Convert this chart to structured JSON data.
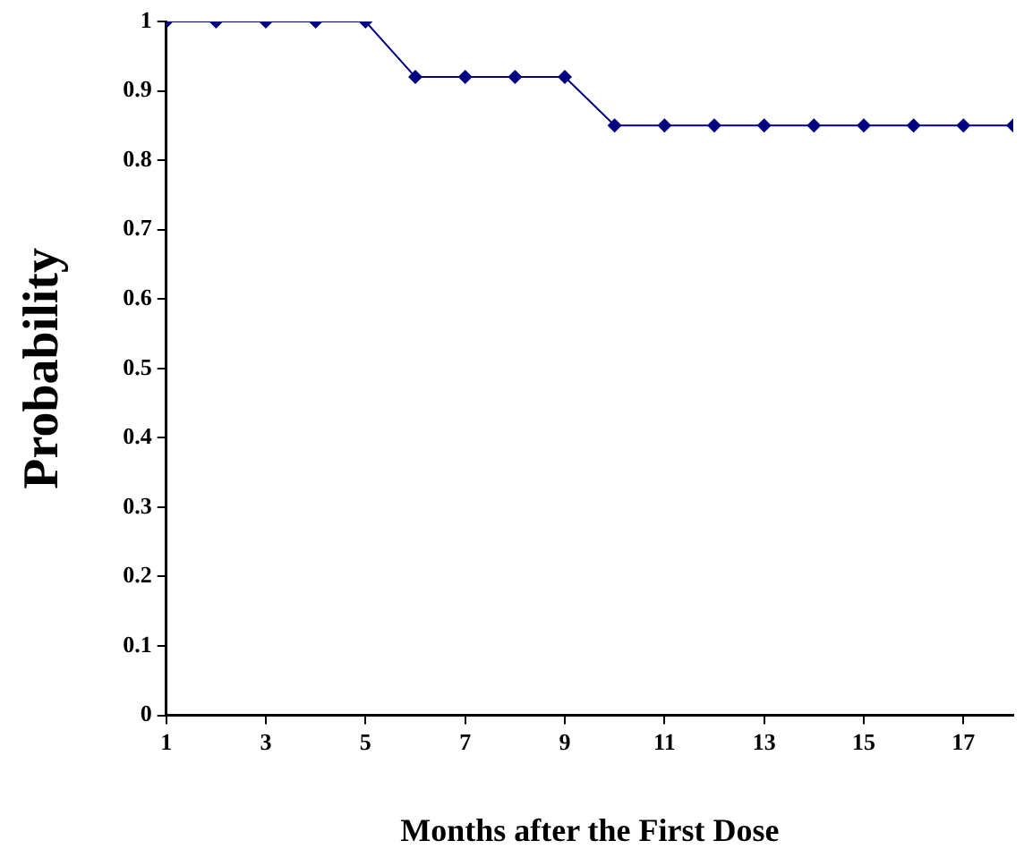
{
  "chart_data": {
    "type": "line",
    "xlabel": "Months after the First Dose",
    "ylabel": "Probability",
    "x": [
      1,
      2,
      3,
      4,
      5,
      6,
      7,
      8,
      9,
      10,
      11,
      12,
      13,
      14,
      15,
      16,
      17,
      18
    ],
    "series": [
      {
        "color": "#000080",
        "values": [
          1,
          1,
          1,
          1,
          1,
          0.92,
          0.92,
          0.92,
          0.92,
          0.85,
          0.85,
          0.85,
          0.85,
          0.85,
          0.85,
          0.85,
          0.85,
          0.85
        ]
      }
    ],
    "xlim": [
      1,
      18
    ],
    "xticks": [
      1,
      3,
      5,
      7,
      9,
      11,
      13,
      15,
      17
    ],
    "ylim": [
      0,
      1
    ],
    "yticks": [
      0,
      0.1,
      0.2,
      0.3,
      0.4,
      0.5,
      0.6,
      0.7,
      0.8,
      0.9,
      1
    ],
    "grid": false,
    "legend": false,
    "marker": "diamond",
    "line_style": "solid"
  }
}
